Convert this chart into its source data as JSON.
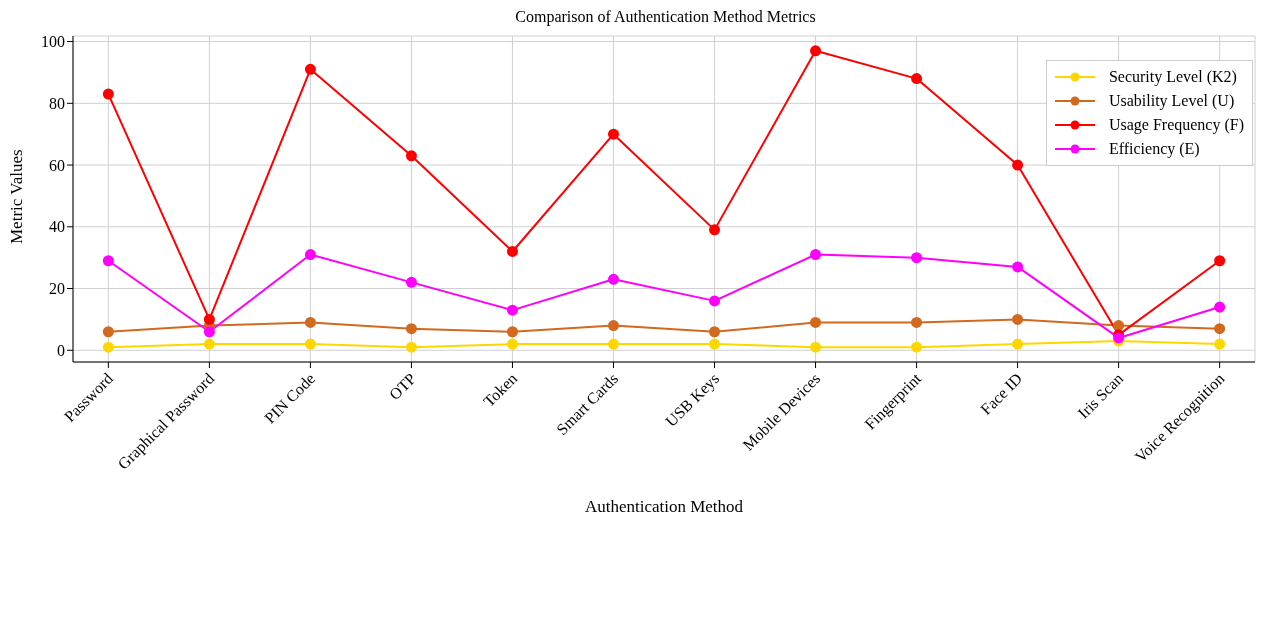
{
  "chart_data": {
    "type": "line",
    "title": "Comparison of Authentication Method Metrics",
    "xlabel": "Authentication Method",
    "ylabel": "Metric Values",
    "categories": [
      "Password",
      "Graphical Password",
      "PIN Code",
      "OTP",
      "Token",
      "Smart Cards",
      "USB Keys",
      "Mobile Devices",
      "Fingerprint",
      "Face ID",
      "Iris Scan",
      "Voice Recognition"
    ],
    "series": [
      {
        "name": "Security Level (K2)",
        "color": "#ffd700",
        "values": [
          1,
          2,
          2,
          1,
          2,
          2,
          2,
          1,
          1,
          2,
          3,
          2
        ]
      },
      {
        "name": "Usability Level (U)",
        "color": "#d2691e",
        "values": [
          6,
          8,
          9,
          7,
          6,
          8,
          6,
          9,
          9,
          10,
          8,
          7
        ]
      },
      {
        "name": "Usage Frequency (F)",
        "color": "#ff0000",
        "values": [
          83,
          10,
          91,
          63,
          32,
          70,
          39,
          97,
          88,
          60,
          5,
          29
        ]
      },
      {
        "name": "Efficiency (E)",
        "color": "#ff00ff",
        "values": [
          29,
          6,
          31,
          22,
          13,
          23,
          16,
          31,
          30,
          27,
          4,
          14
        ]
      }
    ],
    "ylim": [
      -3.8,
      101.8
    ],
    "yticks": [
      0,
      20,
      40,
      60,
      80,
      100
    ],
    "grid": true,
    "legend": "top right",
    "marker": "circle",
    "line_style": "solid"
  }
}
